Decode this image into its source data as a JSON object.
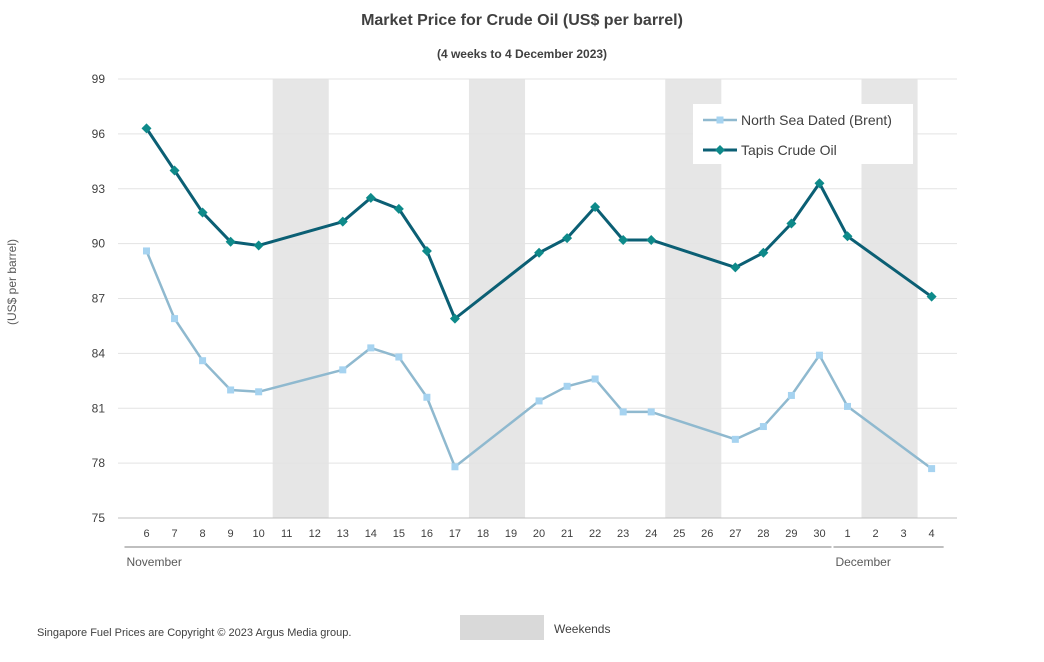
{
  "title": "Market Price for Crude Oil (US$ per barrel)",
  "subtitle": "(4 weeks to 4 December 2023)",
  "footer": "Singapore Fuel Prices are Copyright © 2023 Argus Media group.",
  "weekend_label": "Weekends",
  "chart_data": {
    "type": "line",
    "title": "Market Price for Crude Oil (US$ per barrel)",
    "subtitle": "(4 weeks to 4 December 2023)",
    "ylabel": "(US$ per barrel)",
    "xlabel": "",
    "ylim": [
      75,
      99
    ],
    "yticks": [
      75,
      78,
      81,
      84,
      87,
      90,
      93,
      96,
      99
    ],
    "grid": true,
    "legend_position": "top-right",
    "categories": [
      "6",
      "7",
      "8",
      "9",
      "10",
      "11",
      "12",
      "13",
      "14",
      "15",
      "16",
      "17",
      "18",
      "19",
      "20",
      "21",
      "22",
      "23",
      "24",
      "25",
      "26",
      "27",
      "28",
      "29",
      "30",
      "1",
      "2",
      "3",
      "4"
    ],
    "month_labels": [
      {
        "label": "November",
        "start_index": 0,
        "end_index": 24
      },
      {
        "label": "December",
        "start_index": 25,
        "end_index": 28
      }
    ],
    "weekend_bands": [
      [
        5,
        6
      ],
      [
        12,
        13
      ],
      [
        19,
        20
      ],
      [
        26,
        27
      ]
    ],
    "series": [
      {
        "name": "North Sea Dated (Brent)",
        "color": "#8fb9cf",
        "marker": "square",
        "values": [
          89.6,
          85.9,
          83.6,
          82.0,
          81.9,
          null,
          null,
          83.1,
          84.3,
          83.8,
          81.6,
          77.8,
          null,
          null,
          81.4,
          82.2,
          82.6,
          80.8,
          80.8,
          null,
          null,
          79.3,
          80.0,
          81.7,
          83.9,
          81.1,
          null,
          null,
          77.7
        ]
      },
      {
        "name": "Tapis Crude Oil",
        "color": "#0b5f74",
        "marker": "diamond",
        "values": [
          96.3,
          94.0,
          91.7,
          90.1,
          89.9,
          null,
          null,
          91.2,
          92.5,
          91.9,
          89.6,
          85.9,
          null,
          null,
          89.5,
          90.3,
          92.0,
          90.2,
          90.2,
          null,
          null,
          88.7,
          89.5,
          91.1,
          93.3,
          90.4,
          null,
          null,
          87.1
        ]
      }
    ]
  }
}
